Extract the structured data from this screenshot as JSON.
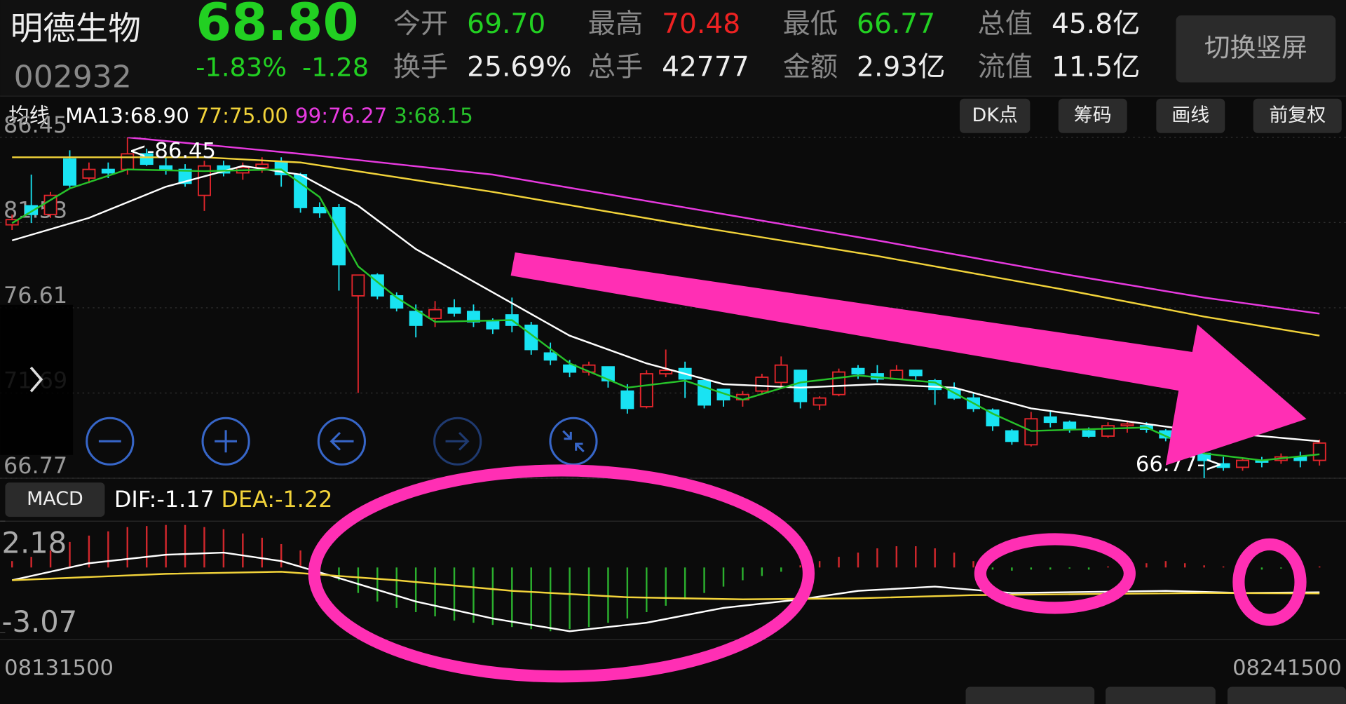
{
  "header": {
    "name": "明德生物",
    "price": "68.80",
    "code": "002932",
    "change_pct": "-1.83%",
    "change": "-1.28",
    "stats": [
      [
        {
          "label": "今开",
          "value": "69.70"
        },
        {
          "label": "最高",
          "value": "70.48"
        },
        {
          "label": "最低",
          "value": "66.77"
        },
        {
          "label": "总值",
          "value": "45.8亿"
        }
      ],
      [
        {
          "label": "换手",
          "value": "25.69%"
        },
        {
          "label": "总手",
          "value": "42777"
        },
        {
          "label": "金额",
          "value": "2.93亿"
        },
        {
          "label": "流值",
          "value": "11.5亿"
        }
      ]
    ],
    "switch_button": "切换竖屏"
  },
  "toolbar": {
    "buttons": [
      "DK点",
      "筹码",
      "画线",
      "前复权"
    ]
  },
  "chart_data": [
    {
      "type": "candlestick",
      "legend_title": "均线",
      "ylim": [
        66.77,
        86.45
      ],
      "yticks": [
        66.77,
        71.69,
        76.61,
        81.53,
        86.45
      ],
      "grid": true,
      "up_color": "#e5262c",
      "down_color": "#19e3f2",
      "annotations": [
        "<-86.45",
        "66.77->"
      ],
      "open": [
        81.4,
        82.5,
        82.0,
        85.2,
        84.1,
        84.6,
        84.6,
        85.5,
        84.8,
        84.6,
        83.1,
        84.8,
        84.4,
        84.7,
        85.0,
        84.3,
        82.4,
        82.4,
        77.3,
        78.5,
        77.3,
        76.4,
        76.0,
        76.6,
        76.4,
        75.8,
        76.2,
        75.6,
        74.0,
        73.3,
        72.9,
        73.2,
        71.8,
        70.9,
        72.8,
        73.1,
        72.4,
        71.9,
        71.3,
        71.8,
        72.3,
        73.0,
        71.0,
        71.6,
        73.1,
        72.8,
        72.5,
        73.0,
        72.4,
        71.9,
        71.4,
        70.7,
        69.5,
        68.7,
        70.3,
        70.0,
        69.5,
        69.2,
        69.8,
        69.8,
        69.5,
        68.9,
        68.2,
        67.6,
        67.4,
        67.8,
        67.8,
        68.0,
        67.8
      ],
      "high": [
        82.0,
        84.3,
        83.3,
        85.7,
        85.0,
        85.0,
        86.45,
        85.8,
        85.3,
        84.9,
        85.1,
        85.1,
        85.0,
        85.3,
        85.3,
        84.4,
        82.7,
        82.6,
        78.4,
        78.6,
        77.5,
        76.8,
        77.0,
        77.1,
        76.8,
        76.0,
        77.2,
        75.8,
        74.6,
        73.6,
        73.5,
        73.2,
        72.2,
        73.0,
        74.2,
        73.5,
        72.5,
        71.9,
        71.8,
        72.8,
        73.8,
        73.0,
        71.5,
        73.1,
        73.3,
        73.3,
        73.3,
        73.0,
        72.5,
        72.3,
        71.7,
        70.8,
        69.6,
        70.6,
        70.7,
        70.1,
        69.7,
        70.0,
        70.1,
        70.0,
        69.6,
        69.0,
        68.4,
        68.0,
        67.9,
        68.0,
        68.2,
        68.3,
        69.0
      ],
      "low": [
        81.1,
        81.5,
        81.8,
        83.5,
        83.8,
        84.1,
        84.3,
        84.8,
        84.3,
        83.6,
        82.2,
        84.2,
        84.0,
        84.4,
        83.6,
        82.1,
        81.8,
        77.6,
        71.7,
        77.1,
        76.4,
        74.9,
        75.5,
        76.1,
        75.5,
        75.1,
        75.2,
        73.9,
        73.3,
        72.6,
        72.7,
        72.0,
        70.5,
        70.8,
        72.6,
        71.4,
        70.8,
        70.9,
        70.9,
        71.6,
        72.0,
        70.8,
        70.7,
        71.5,
        72.5,
        72.3,
        72.5,
        72.4,
        71.0,
        71.3,
        70.6,
        69.5,
        68.7,
        68.6,
        69.7,
        69.4,
        69.1,
        69.1,
        69.4,
        69.4,
        68.9,
        68.2,
        66.77,
        67.2,
        67.2,
        67.4,
        67.6,
        67.4,
        67.5
      ],
      "close": [
        81.7,
        82.0,
        83.1,
        83.7,
        84.6,
        84.4,
        85.5,
        84.9,
        84.6,
        83.8,
        84.8,
        84.4,
        84.7,
        84.9,
        84.3,
        82.4,
        82.1,
        79.1,
        78.5,
        77.3,
        76.6,
        75.6,
        76.5,
        76.3,
        75.8,
        75.4,
        75.6,
        74.2,
        73.6,
        72.9,
        73.3,
        72.4,
        70.8,
        72.8,
        73.0,
        72.5,
        71.0,
        71.3,
        71.6,
        72.6,
        73.3,
        71.2,
        71.4,
        72.9,
        72.8,
        72.5,
        73.0,
        72.7,
        71.9,
        71.4,
        70.8,
        69.8,
        68.9,
        70.2,
        70.0,
        69.6,
        69.2,
        69.8,
        69.9,
        69.6,
        69.1,
        68.4,
        67.8,
        67.4,
        67.8,
        67.7,
        68.0,
        67.8,
        68.8
      ],
      "lines": [
        {
          "name": "MA13:68.90",
          "color": "#ffffff",
          "x": [
            0,
            4,
            8,
            12,
            15,
            18,
            21,
            25,
            29,
            33,
            37,
            41,
            45,
            49,
            53,
            57,
            61,
            65,
            68
          ],
          "values": [
            80.5,
            81.8,
            83.6,
            84.8,
            84.3,
            82.5,
            80.0,
            77.5,
            75.0,
            73.4,
            72.2,
            72.0,
            72.2,
            72.0,
            70.8,
            70.2,
            69.6,
            69.2,
            68.9
          ]
        },
        {
          "name": "77:75.00",
          "color": "#f2d33a",
          "x": [
            0,
            10,
            15,
            25,
            35,
            45,
            55,
            62,
            68
          ],
          "values": [
            85.3,
            85.3,
            85.0,
            83.3,
            81.4,
            79.6,
            77.6,
            76.1,
            75.0
          ]
        },
        {
          "name": "99:76.27",
          "color": "#e83ae0",
          "x": [
            6,
            15,
            25,
            35,
            45,
            55,
            62,
            68
          ],
          "values": [
            86.45,
            85.5,
            84.3,
            82.4,
            80.5,
            78.5,
            77.2,
            76.27
          ]
        },
        {
          "name": "3:68.15",
          "color": "#27c22a",
          "x": [
            0,
            3,
            6,
            10,
            14,
            16,
            18,
            20,
            22,
            26,
            29,
            32,
            35,
            38,
            41,
            44,
            48,
            51,
            53,
            56,
            59,
            62,
            65,
            68
          ],
          "values": [
            81.5,
            83.5,
            84.6,
            84.5,
            84.6,
            83.0,
            79.0,
            77.2,
            75.8,
            75.9,
            73.4,
            72.0,
            72.4,
            71.3,
            72.3,
            72.7,
            72.3,
            70.5,
            69.5,
            69.6,
            69.7,
            68.2,
            67.8,
            68.15
          ]
        }
      ]
    },
    {
      "type": "macd",
      "label": "MACD",
      "ylim": [
        -3.07,
        2.18
      ],
      "yticks": [
        -3.07,
        2.18
      ],
      "up_color": "#d0272c",
      "down_color": "#2bb02e",
      "values": [
        0.3,
        0.5,
        0.8,
        1.2,
        1.5,
        1.7,
        1.9,
        1.95,
        2.0,
        2.0,
        1.9,
        1.8,
        1.6,
        1.4,
        1.1,
        0.8,
        -0.2,
        -0.6,
        -1.2,
        -1.6,
        -1.9,
        -2.1,
        -2.3,
        -2.5,
        -2.6,
        -2.7,
        -2.8,
        -2.9,
        -3.0,
        -2.9,
        -2.8,
        -2.6,
        -2.4,
        -2.1,
        -1.8,
        -1.5,
        -1.2,
        -0.9,
        -0.6,
        -0.4,
        -0.2,
        0.1,
        0.3,
        0.5,
        0.7,
        0.9,
        1.0,
        1.0,
        0.9,
        0.7,
        0.3,
        -0.1,
        -0.15,
        -0.1,
        -0.1,
        -0.05,
        -0.1,
        0.05,
        0.1,
        0.2,
        0.3,
        0.2,
        0.1,
        0.05,
        -0.05,
        -0.1,
        -0.05,
        -0.1,
        0.05
      ],
      "lines": [
        {
          "name": "DIF:-1.17",
          "color": "#ffffff",
          "x": [
            0,
            4,
            8,
            11,
            14,
            17,
            21,
            25,
            29,
            33,
            37,
            41,
            44,
            48,
            52,
            56,
            60,
            64,
            68
          ],
          "values": [
            -0.6,
            0.2,
            0.6,
            0.7,
            0.3,
            -0.5,
            -1.6,
            -2.4,
            -3.0,
            -2.6,
            -1.9,
            -1.5,
            -1.1,
            -0.9,
            -1.2,
            -1.15,
            -1.1,
            -1.2,
            -1.17
          ]
        },
        {
          "name": "DEA:-1.22",
          "color": "#f2d33a",
          "x": [
            0,
            8,
            14,
            20,
            26,
            32,
            38,
            44,
            50,
            56,
            62,
            68
          ],
          "values": [
            -0.6,
            -0.3,
            -0.2,
            -0.6,
            -1.1,
            -1.4,
            -1.5,
            -1.45,
            -1.3,
            -1.25,
            -1.2,
            -1.22
          ]
        }
      ],
      "date_start": "08131500",
      "date_end": "08241500"
    }
  ]
}
